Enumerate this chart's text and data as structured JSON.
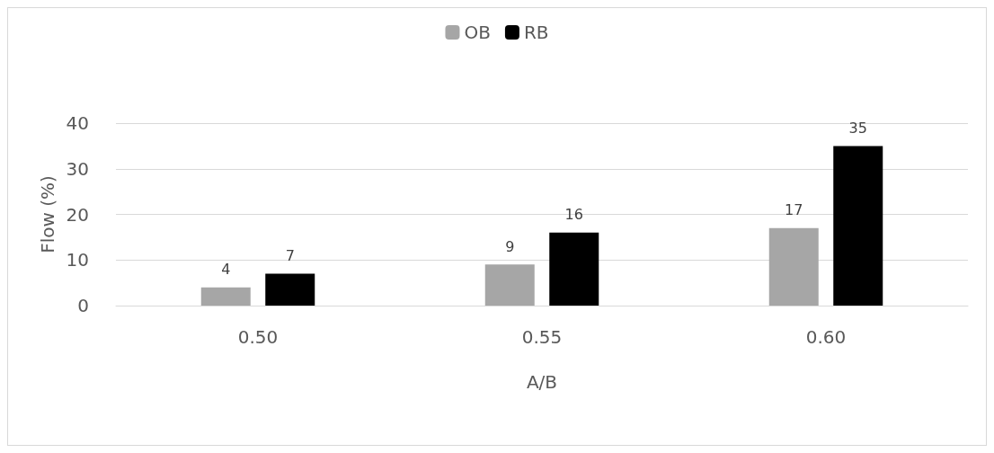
{
  "chart_data": {
    "type": "bar",
    "xlabel": "A/B",
    "ylabel": "Flow (%)",
    "categories": [
      "0.50",
      "0.55",
      "0.60"
    ],
    "series": [
      {
        "name": "OB",
        "color": "#a6a6a6",
        "values": [
          4,
          9,
          17
        ]
      },
      {
        "name": "RB",
        "color": "#000000",
        "values": [
          7,
          16,
          35
        ]
      }
    ],
    "ylim": [
      0,
      40
    ],
    "yticks": [
      0,
      10,
      20,
      30,
      40
    ],
    "grid": "y",
    "legend": "top",
    "data_labels": true
  }
}
